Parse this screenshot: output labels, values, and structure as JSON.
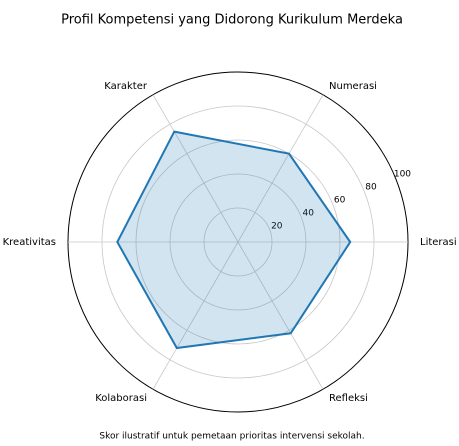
{
  "chart_data": {
    "type": "radar",
    "title": "Profil Kompetensi yang Didorong Kurikulum Merdeka",
    "subtitle": "Skor ilustratif untuk pemetaan prioritas intervensi sekolah.",
    "categories": [
      "Literasi",
      "Numerasi",
      "Karakter",
      "Kreativitas",
      "Kolaborasi",
      "Refleksi"
    ],
    "values": [
      66,
      60,
      75,
      71,
      72,
      62
    ],
    "color": "#1f77b4",
    "ylim": [
      0,
      100
    ],
    "yticks": [
      20,
      40,
      60,
      80,
      100
    ],
    "grid": true
  }
}
